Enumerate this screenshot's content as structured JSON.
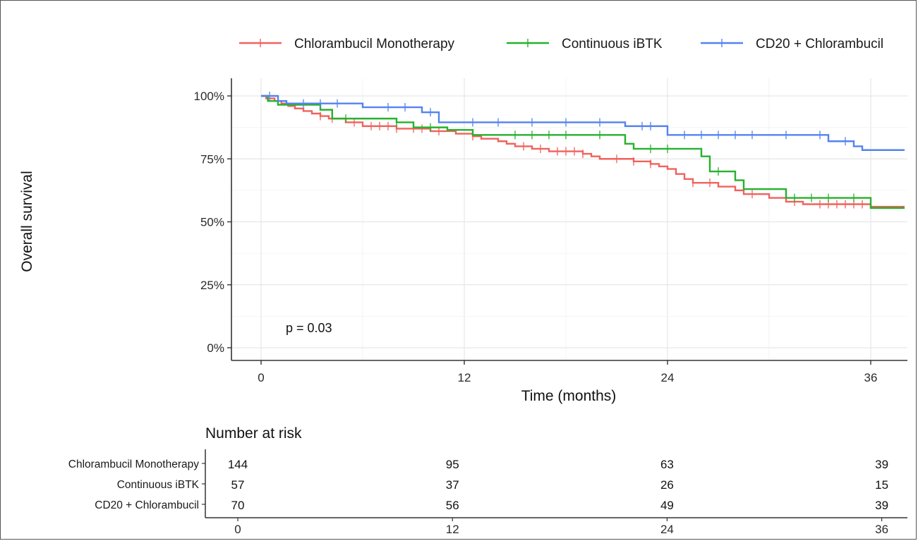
{
  "chart_data": {
    "type": "line",
    "subtype": "kaplan-meier",
    "xlabel": "Time (months)",
    "ylabel": "Overall survival",
    "xlim": [
      0,
      38
    ],
    "ylim": [
      0,
      1.05
    ],
    "x_ticks": [
      0,
      12,
      24,
      36
    ],
    "y_ticks": [
      {
        "value": 0,
        "label": "0%"
      },
      {
        "value": 0.25,
        "label": "25%"
      },
      {
        "value": 0.5,
        "label": "50%"
      },
      {
        "value": 0.75,
        "label": "75%"
      },
      {
        "value": 1.0,
        "label": "100%"
      }
    ],
    "grid": true,
    "legend_position": "top",
    "annotation": "p = 0.03",
    "series": [
      {
        "name": "Chlorambucil Monotherapy",
        "color": "#f0625d",
        "steps": [
          [
            0,
            1.0
          ],
          [
            0.3,
            0.99
          ],
          [
            0.8,
            0.98
          ],
          [
            1.2,
            0.97
          ],
          [
            1.6,
            0.96
          ],
          [
            2.0,
            0.95
          ],
          [
            2.5,
            0.94
          ],
          [
            3.0,
            0.93
          ],
          [
            3.5,
            0.92
          ],
          [
            4.0,
            0.91
          ],
          [
            5.0,
            0.895
          ],
          [
            6.0,
            0.88
          ],
          [
            8.0,
            0.87
          ],
          [
            10.0,
            0.86
          ],
          [
            11.5,
            0.85
          ],
          [
            12.5,
            0.84
          ],
          [
            13.0,
            0.83
          ],
          [
            14.0,
            0.82
          ],
          [
            14.5,
            0.81
          ],
          [
            15.0,
            0.8
          ],
          [
            16.0,
            0.79
          ],
          [
            17.0,
            0.78
          ],
          [
            19.0,
            0.77
          ],
          [
            19.5,
            0.76
          ],
          [
            20.0,
            0.75
          ],
          [
            22.0,
            0.74
          ],
          [
            23.0,
            0.73
          ],
          [
            23.5,
            0.72
          ],
          [
            24.0,
            0.71
          ],
          [
            24.5,
            0.69
          ],
          [
            25.0,
            0.67
          ],
          [
            25.5,
            0.655
          ],
          [
            27.0,
            0.64
          ],
          [
            28.0,
            0.625
          ],
          [
            28.5,
            0.61
          ],
          [
            30.0,
            0.595
          ],
          [
            31.0,
            0.58
          ],
          [
            32.0,
            0.57
          ],
          [
            36.0,
            0.56
          ],
          [
            38.0,
            0.56
          ]
        ],
        "censor": [
          3.5,
          4.2,
          5.5,
          6.5,
          7.0,
          7.5,
          8.0,
          9.0,
          9.5,
          10.5,
          12.5,
          15.5,
          16.5,
          17.5,
          18.0,
          18.5,
          19.0,
          21.0,
          22.0,
          23.0,
          25.5,
          26.5,
          29.0,
          31.5,
          33.0,
          33.5,
          34.0,
          34.5,
          35.0,
          35.5
        ]
      },
      {
        "name": "Continuous iBTK",
        "color": "#27b12c",
        "steps": [
          [
            0,
            1.0
          ],
          [
            0.4,
            0.98
          ],
          [
            1.0,
            0.965
          ],
          [
            3.5,
            0.945
          ],
          [
            4.2,
            0.91
          ],
          [
            8.0,
            0.895
          ],
          [
            9.0,
            0.875
          ],
          [
            11.0,
            0.865
          ],
          [
            12.5,
            0.845
          ],
          [
            21.5,
            0.81
          ],
          [
            22.0,
            0.79
          ],
          [
            26.0,
            0.76
          ],
          [
            26.5,
            0.7
          ],
          [
            28.0,
            0.665
          ],
          [
            28.5,
            0.63
          ],
          [
            31.0,
            0.595
          ],
          [
            36.0,
            0.555
          ],
          [
            38.0,
            0.555
          ]
        ],
        "censor": [
          5.0,
          8.0,
          10.0,
          15.0,
          16.0,
          17.0,
          18.0,
          20.0,
          23.0,
          24.0,
          27.0,
          31.5,
          32.5,
          33.5,
          35.0
        ]
      },
      {
        "name": "CD20 + Chlorambucil",
        "color": "#5482f0",
        "steps": [
          [
            0,
            1.0
          ],
          [
            1.0,
            0.98
          ],
          [
            1.5,
            0.97
          ],
          [
            6.0,
            0.955
          ],
          [
            9.5,
            0.935
          ],
          [
            10.5,
            0.895
          ],
          [
            21.5,
            0.88
          ],
          [
            24.0,
            0.845
          ],
          [
            33.5,
            0.82
          ],
          [
            35.0,
            0.8
          ],
          [
            35.5,
            0.785
          ],
          [
            38.0,
            0.785
          ]
        ],
        "censor": [
          0.5,
          2.5,
          3.5,
          4.5,
          7.5,
          8.5,
          10.0,
          12.5,
          14.0,
          16.0,
          18.0,
          20.0,
          22.5,
          23.0,
          25.0,
          26.0,
          27.0,
          28.0,
          29.0,
          31.0,
          33.0,
          34.5
        ]
      }
    ],
    "risk_table": {
      "title": "Number at risk",
      "times": [
        0,
        12,
        24,
        36
      ],
      "rows": [
        {
          "label": "Chlorambucil Monotherapy",
          "counts": [
            "144",
            "95",
            "63",
            "39"
          ]
        },
        {
          "label": "Continuous iBTK",
          "counts": [
            "57",
            "37",
            "26",
            "15"
          ]
        },
        {
          "label": "CD20 + Chlorambucil",
          "counts": [
            "70",
            "56",
            "49",
            "39"
          ]
        }
      ],
      "x_tick_labels": [
        "0",
        "12",
        "24",
        "36"
      ]
    }
  }
}
